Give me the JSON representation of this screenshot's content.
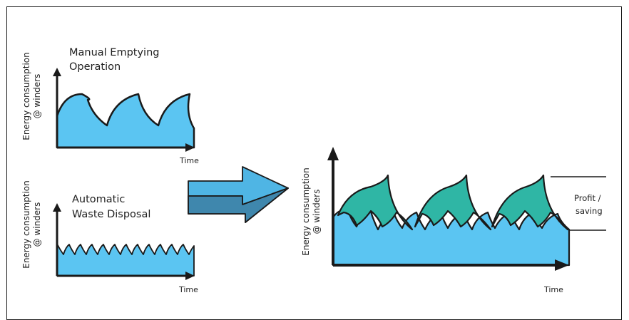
{
  "colors": {
    "blue_fill": "#5bc5f2",
    "teal_fill": "#2fb6a5",
    "arrow_light": "#4fb5e4",
    "arrow_dark": "#3f87ad",
    "ink": "#1a1a1a"
  },
  "top_left_chart": {
    "title": [
      "Manual Emptying",
      "Operation"
    ],
    "ylabel": [
      "Energy consumption",
      "@ winders"
    ],
    "xlabel": "Time"
  },
  "bottom_left_chart": {
    "title": [
      "Automatic",
      "Waste Disposal"
    ],
    "ylabel": [
      "Energy consumption",
      "@ winders"
    ],
    "xlabel": "Time"
  },
  "right_chart": {
    "ylabel": [
      "Energy consumption",
      "@ winders"
    ],
    "xlabel": "Time",
    "annotation": [
      "Profit /",
      "saving"
    ]
  },
  "transition_arrow": {
    "icon": "block-arrow-right-icon"
  }
}
